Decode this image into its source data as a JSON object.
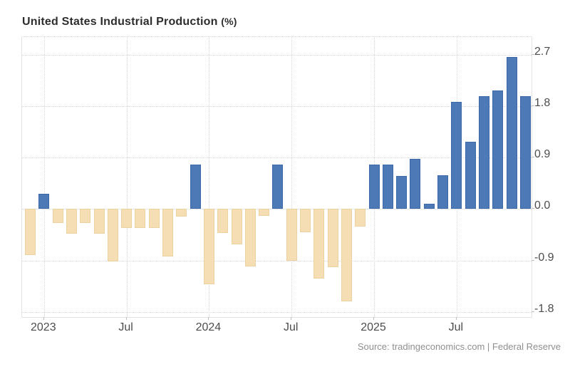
{
  "header": {
    "title": "United States Industrial Production",
    "unit": "(%)"
  },
  "footer": {
    "source": "Source: tradingeconomics.com | Federal Reserve"
  },
  "colors": {
    "positive_bar": "#4e79b7",
    "positive_bar_border": "#3a68a8",
    "negative_bar": "#f5deb3",
    "negative_bar_border": "#ecd2a0",
    "gridline": "#d6d6d6",
    "plot_frame": "#e3e3e3",
    "title_text": "#2d2d2d",
    "axis_text": "#4d4d4d",
    "source_text": "#8f8f8f",
    "background": "#ffffff"
  },
  "chart_data": {
    "type": "bar",
    "title": "United States Industrial Production (%)",
    "xlabel": "",
    "ylabel": "",
    "grid": true,
    "legend": false,
    "ylim": [
      -1.89,
      3.01
    ],
    "yticks": [
      {
        "value": 2.7,
        "label": "2.7"
      },
      {
        "value": 1.8,
        "label": "1.8"
      },
      {
        "value": 0.9,
        "label": "0.9"
      },
      {
        "value": 0.0,
        "label": "0.0"
      },
      {
        "value": -0.9,
        "label": "-0.9"
      },
      {
        "value": -1.8,
        "label": "-1.8"
      }
    ],
    "xticks": [
      {
        "index": 1,
        "label": "2023"
      },
      {
        "index": 7,
        "label": "Jul"
      },
      {
        "index": 13,
        "label": "2024"
      },
      {
        "index": 19,
        "label": "Jul"
      },
      {
        "index": 25,
        "label": "2025"
      },
      {
        "index": 31,
        "label": "Jul"
      }
    ],
    "x": [
      "Dec 2022",
      "Jan 2023",
      "Feb 2023",
      "Mar 2023",
      "Apr 2023",
      "May 2023",
      "Jun 2023",
      "Jul 2023",
      "Aug 2023",
      "Sep 2023",
      "Oct 2023",
      "Nov 2023",
      "Dec 2023",
      "Jan 2024",
      "Feb 2024",
      "Mar 2024",
      "Apr 2024",
      "May 2024",
      "Jun 2024",
      "Jul 2024",
      "Aug 2024",
      "Sep 2024",
      "Oct 2024",
      "Nov 2024",
      "Dec 2024",
      "Jan 2025",
      "Feb 2025",
      "Mar 2025",
      "Apr 2025",
      "May 2025",
      "Jun 2025",
      "Jul 2025",
      "Aug 2025",
      "Sep 2025",
      "Oct 2025",
      "Nov 2025",
      "Dec 2025"
    ],
    "values": [
      -0.81,
      0.27,
      -0.24,
      -0.43,
      -0.24,
      -0.43,
      -0.92,
      -0.33,
      -0.33,
      -0.33,
      -0.83,
      -0.13,
      0.78,
      -1.32,
      -0.42,
      -0.62,
      -1.01,
      -0.12,
      0.78,
      -0.9,
      -0.41,
      -1.22,
      -1.02,
      -1.62,
      -0.31,
      0.78,
      0.78,
      0.58,
      0.88,
      0.09,
      0.59,
      1.87,
      1.18,
      1.98,
      2.07,
      2.66,
      1.98
    ]
  }
}
